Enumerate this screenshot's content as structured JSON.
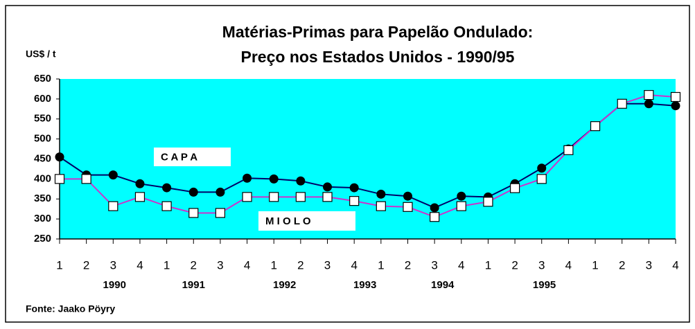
{
  "chart_data": {
    "type": "line",
    "title": "Matérias-Primas para Papelão Ondulado:",
    "subtitle": "Preço nos Estados Unidos - 1990/95",
    "y_axis_label": "US$ / t",
    "source": "Fonte: Jaako Pöyry",
    "categories": [
      "1",
      "2",
      "3",
      "4",
      "1",
      "2",
      "3",
      "4",
      "1",
      "2",
      "3",
      "4",
      "1",
      "2",
      "3",
      "4",
      "1",
      "2",
      "3",
      "4",
      "1",
      "2",
      "3",
      "4"
    ],
    "years": [
      "1990",
      "1991",
      "1992",
      "1993",
      "1994",
      "1995"
    ],
    "ylim": [
      250,
      650
    ],
    "yticks": [
      250,
      300,
      350,
      400,
      450,
      500,
      550,
      600,
      650
    ],
    "background": "#00ffff",
    "series": [
      {
        "name": "C A P A",
        "color": "#000066",
        "marker": "circle",
        "values": [
          455,
          410,
          410,
          388,
          378,
          367,
          367,
          402,
          400,
          395,
          380,
          378,
          362,
          357,
          328,
          357,
          355,
          388,
          427,
          475,
          532,
          588,
          588,
          583
        ]
      },
      {
        "name": "M I O L O",
        "color": "#cc33cc",
        "marker": "square",
        "values": [
          400,
          400,
          332,
          355,
          332,
          315,
          315,
          355,
          355,
          355,
          355,
          345,
          332,
          330,
          305,
          332,
          343,
          377,
          400,
          472,
          532,
          588,
          610,
          605
        ]
      }
    ]
  }
}
